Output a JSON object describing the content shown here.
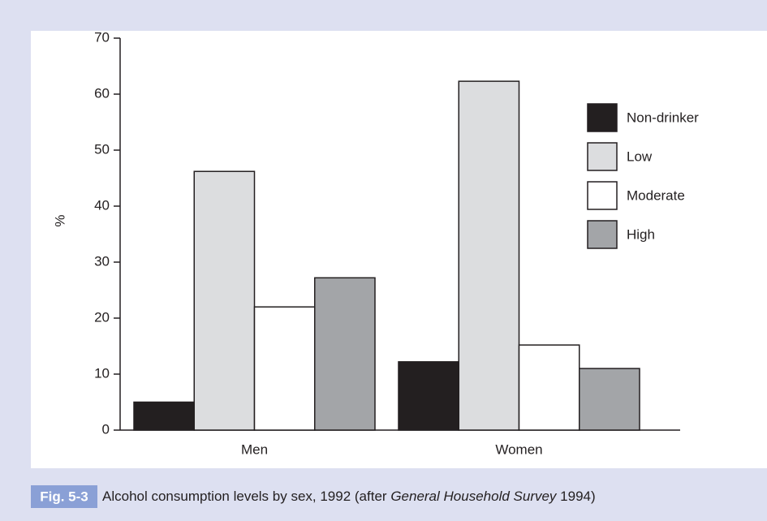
{
  "chart_data": {
    "type": "bar",
    "categories": [
      "Men",
      "Women"
    ],
    "series": [
      {
        "name": "Non-drinker",
        "color": "#231f20",
        "values": [
          5,
          12.2
        ]
      },
      {
        "name": "Low",
        "color": "#dcdddf",
        "values": [
          46.2,
          62.3
        ]
      },
      {
        "name": "Moderate",
        "color": "#ffffff",
        "values": [
          22,
          15.2
        ]
      },
      {
        "name": "High",
        "color": "#a3a5a8",
        "values": [
          27.2,
          11
        ]
      }
    ],
    "y_label": "%",
    "ylim": [
      0,
      70
    ],
    "yticks": [
      0,
      10,
      20,
      30,
      40,
      50,
      60,
      70
    ],
    "legend": "upper right",
    "figure_label": "Fig. 5-3",
    "caption": "Alcohol consumption levels by sex, 1992 (after ",
    "caption_source": "General Household Survey",
    "caption_year": " 1994)"
  }
}
